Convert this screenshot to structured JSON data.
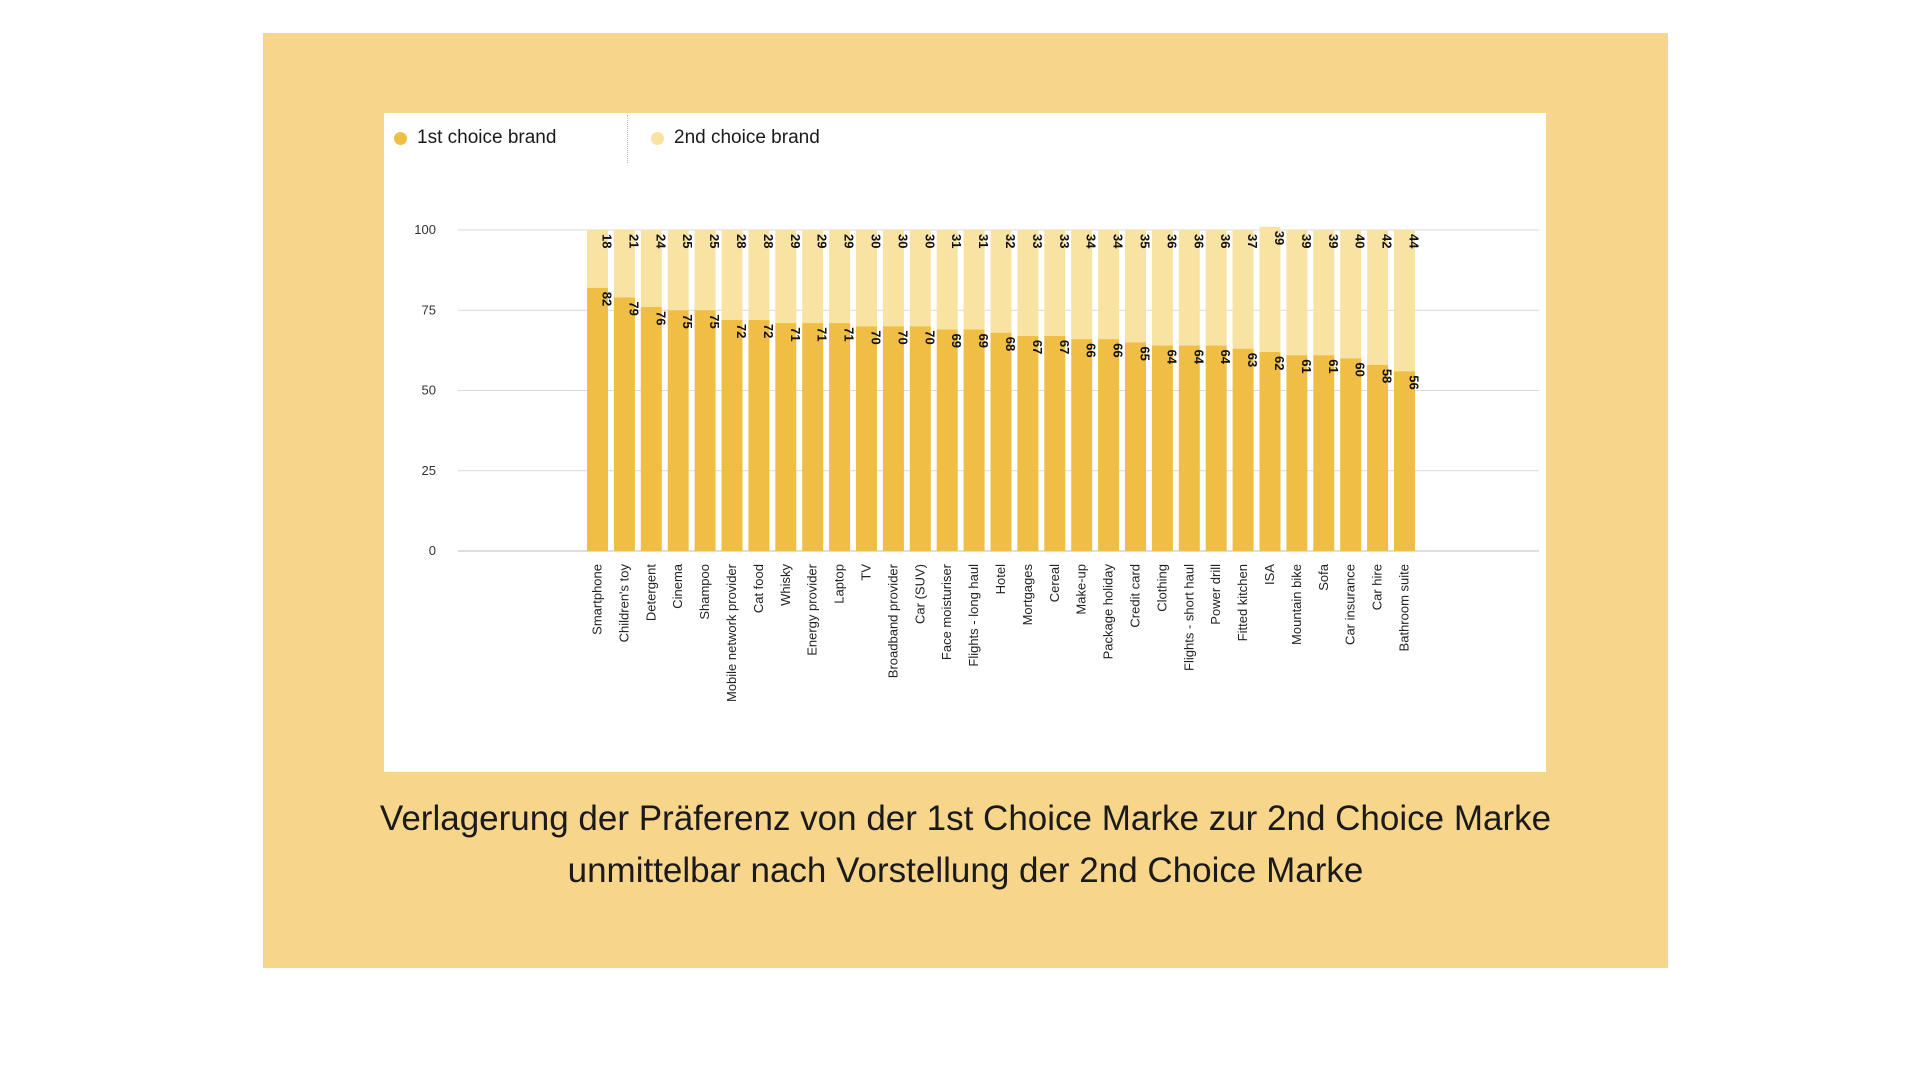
{
  "colors": {
    "background": "#ffffff",
    "slide_background": "#f7d58b",
    "first_choice": "#f0be45",
    "second_choice": "#f8e3a3",
    "gridline": "#d9d9d9",
    "text": "#1a1a1a"
  },
  "caption": {
    "line1": "Verlagerung der Präferenz von der 1st Choice Marke zur 2nd Choice Marke",
    "line2": "unmittelbar nach Vorstellung der 2nd Choice Marke"
  },
  "chart_data": {
    "type": "bar",
    "stacked": true,
    "title": "",
    "xlabel": "",
    "ylabel": "",
    "ylim": [
      0,
      100
    ],
    "yticks": [
      0,
      25,
      50,
      75,
      100
    ],
    "grid": true,
    "legend_position": "top-left",
    "categories": [
      "Smartphone",
      "Children's toy",
      "Detergent",
      "Cinema",
      "Shampoo",
      "Mobile network provider",
      "Cat food",
      "Whisky",
      "Energy provider",
      "Laptop",
      "TV",
      "Broadband provider",
      "Car (SUV)",
      "Face moisturiser",
      "Flights - long haul",
      "Hotel",
      "Mortgages",
      "Cereal",
      "Make-up",
      "Package holiday",
      "Credit card",
      "Clothing",
      "Flights - short haul",
      "Power drill",
      "Fitted kitchen",
      "ISA",
      "Mountain bike",
      "Sofa",
      "Car insurance",
      "Car hire",
      "Bathroom suite"
    ],
    "series": [
      {
        "name": "1st choice brand",
        "values": [
          82,
          79,
          76,
          75,
          75,
          72,
          72,
          71,
          71,
          71,
          70,
          70,
          70,
          69,
          69,
          68,
          67,
          67,
          66,
          66,
          65,
          64,
          64,
          64,
          63,
          62,
          61,
          61,
          60,
          58,
          56
        ]
      },
      {
        "name": "2nd choice brand",
        "values": [
          18,
          21,
          24,
          25,
          25,
          28,
          28,
          29,
          29,
          29,
          30,
          30,
          30,
          31,
          31,
          32,
          33,
          33,
          34,
          34,
          35,
          36,
          36,
          36,
          37,
          39,
          39,
          39,
          40,
          42,
          44
        ]
      }
    ]
  }
}
